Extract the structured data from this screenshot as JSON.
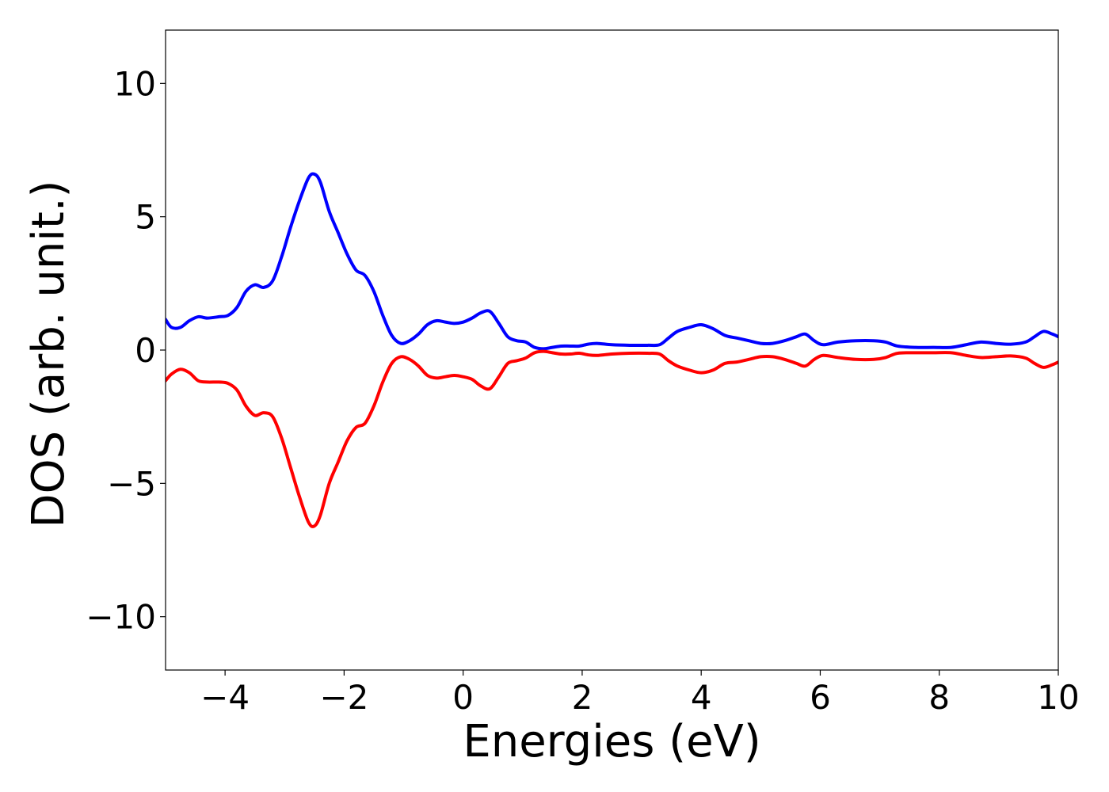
{
  "chart_data": {
    "type": "line",
    "title": "",
    "xlabel": "Energies (eV)",
    "ylabel": "DOS (arb. unit.)",
    "xlim": [
      -5,
      10
    ],
    "ylim": [
      -12,
      12
    ],
    "xticks": [
      -4,
      -2,
      0,
      2,
      4,
      6,
      8,
      10
    ],
    "xtick_labels": [
      "−4",
      "−2",
      "0",
      "2",
      "4",
      "6",
      "8",
      "10"
    ],
    "yticks": [
      -10,
      -5,
      0,
      5,
      10
    ],
    "ytick_labels": [
      "−10",
      "−5",
      "0",
      "5",
      "10"
    ],
    "grid": false,
    "legend": "none",
    "series": [
      {
        "color": "#0000ff",
        "points": [
          [
            -5.0,
            1.15
          ],
          [
            -4.9,
            0.85
          ],
          [
            -4.75,
            0.85
          ],
          [
            -4.6,
            1.1
          ],
          [
            -4.45,
            1.25
          ],
          [
            -4.3,
            1.2
          ],
          [
            -4.1,
            1.25
          ],
          [
            -3.95,
            1.3
          ],
          [
            -3.8,
            1.6
          ],
          [
            -3.65,
            2.2
          ],
          [
            -3.5,
            2.45
          ],
          [
            -3.35,
            2.35
          ],
          [
            -3.2,
            2.6
          ],
          [
            -3.05,
            3.5
          ],
          [
            -2.9,
            4.6
          ],
          [
            -2.75,
            5.6
          ],
          [
            -2.6,
            6.45
          ],
          [
            -2.5,
            6.6
          ],
          [
            -2.4,
            6.3
          ],
          [
            -2.25,
            5.2
          ],
          [
            -2.1,
            4.4
          ],
          [
            -1.95,
            3.6
          ],
          [
            -1.8,
            3.0
          ],
          [
            -1.65,
            2.8
          ],
          [
            -1.5,
            2.2
          ],
          [
            -1.35,
            1.3
          ],
          [
            -1.2,
            0.55
          ],
          [
            -1.05,
            0.25
          ],
          [
            -0.9,
            0.35
          ],
          [
            -0.75,
            0.6
          ],
          [
            -0.6,
            0.95
          ],
          [
            -0.45,
            1.1
          ],
          [
            -0.3,
            1.05
          ],
          [
            -0.15,
            1.0
          ],
          [
            0.0,
            1.05
          ],
          [
            0.15,
            1.2
          ],
          [
            0.3,
            1.4
          ],
          [
            0.45,
            1.45
          ],
          [
            0.6,
            1.0
          ],
          [
            0.75,
            0.5
          ],
          [
            0.9,
            0.35
          ],
          [
            1.05,
            0.3
          ],
          [
            1.2,
            0.1
          ],
          [
            1.35,
            0.05
          ],
          [
            1.5,
            0.1
          ],
          [
            1.65,
            0.15
          ],
          [
            1.8,
            0.15
          ],
          [
            1.95,
            0.15
          ],
          [
            2.1,
            0.22
          ],
          [
            2.25,
            0.25
          ],
          [
            2.5,
            0.2
          ],
          [
            2.8,
            0.18
          ],
          [
            3.1,
            0.18
          ],
          [
            3.3,
            0.2
          ],
          [
            3.45,
            0.45
          ],
          [
            3.6,
            0.7
          ],
          [
            3.8,
            0.85
          ],
          [
            4.0,
            0.95
          ],
          [
            4.2,
            0.8
          ],
          [
            4.4,
            0.55
          ],
          [
            4.6,
            0.45
          ],
          [
            4.8,
            0.35
          ],
          [
            5.0,
            0.25
          ],
          [
            5.2,
            0.25
          ],
          [
            5.4,
            0.35
          ],
          [
            5.6,
            0.5
          ],
          [
            5.75,
            0.6
          ],
          [
            5.9,
            0.35
          ],
          [
            6.05,
            0.2
          ],
          [
            6.3,
            0.3
          ],
          [
            6.6,
            0.35
          ],
          [
            6.9,
            0.35
          ],
          [
            7.1,
            0.3
          ],
          [
            7.3,
            0.15
          ],
          [
            7.6,
            0.1
          ],
          [
            7.9,
            0.1
          ],
          [
            8.2,
            0.1
          ],
          [
            8.45,
            0.2
          ],
          [
            8.7,
            0.3
          ],
          [
            8.95,
            0.25
          ],
          [
            9.2,
            0.22
          ],
          [
            9.45,
            0.3
          ],
          [
            9.6,
            0.5
          ],
          [
            9.75,
            0.7
          ],
          [
            9.9,
            0.6
          ],
          [
            10.0,
            0.5
          ]
        ]
      },
      {
        "color": "#ff0000",
        "points": [
          [
            -5.0,
            -1.15
          ],
          [
            -4.9,
            -0.9
          ],
          [
            -4.75,
            -0.72
          ],
          [
            -4.6,
            -0.85
          ],
          [
            -4.45,
            -1.15
          ],
          [
            -4.3,
            -1.2
          ],
          [
            -4.1,
            -1.2
          ],
          [
            -3.95,
            -1.25
          ],
          [
            -3.8,
            -1.5
          ],
          [
            -3.65,
            -2.1
          ],
          [
            -3.5,
            -2.45
          ],
          [
            -3.35,
            -2.35
          ],
          [
            -3.2,
            -2.5
          ],
          [
            -3.05,
            -3.3
          ],
          [
            -2.9,
            -4.4
          ],
          [
            -2.75,
            -5.5
          ],
          [
            -2.6,
            -6.45
          ],
          [
            -2.5,
            -6.6
          ],
          [
            -2.4,
            -6.2
          ],
          [
            -2.25,
            -5.0
          ],
          [
            -2.1,
            -4.2
          ],
          [
            -1.95,
            -3.4
          ],
          [
            -1.8,
            -2.9
          ],
          [
            -1.65,
            -2.75
          ],
          [
            -1.5,
            -2.1
          ],
          [
            -1.35,
            -1.2
          ],
          [
            -1.2,
            -0.5
          ],
          [
            -1.05,
            -0.25
          ],
          [
            -0.9,
            -0.35
          ],
          [
            -0.75,
            -0.6
          ],
          [
            -0.6,
            -0.95
          ],
          [
            -0.45,
            -1.05
          ],
          [
            -0.3,
            -1.0
          ],
          [
            -0.15,
            -0.95
          ],
          [
            0.0,
            -1.0
          ],
          [
            0.15,
            -1.1
          ],
          [
            0.3,
            -1.35
          ],
          [
            0.45,
            -1.45
          ],
          [
            0.6,
            -1.0
          ],
          [
            0.75,
            -0.5
          ],
          [
            0.9,
            -0.4
          ],
          [
            1.05,
            -0.3
          ],
          [
            1.2,
            -0.1
          ],
          [
            1.35,
            -0.05
          ],
          [
            1.5,
            -0.1
          ],
          [
            1.65,
            -0.15
          ],
          [
            1.8,
            -0.15
          ],
          [
            1.95,
            -0.12
          ],
          [
            2.1,
            -0.18
          ],
          [
            2.25,
            -0.2
          ],
          [
            2.5,
            -0.15
          ],
          [
            2.8,
            -0.12
          ],
          [
            3.1,
            -0.12
          ],
          [
            3.3,
            -0.15
          ],
          [
            3.45,
            -0.4
          ],
          [
            3.6,
            -0.6
          ],
          [
            3.8,
            -0.75
          ],
          [
            4.0,
            -0.85
          ],
          [
            4.2,
            -0.75
          ],
          [
            4.4,
            -0.5
          ],
          [
            4.6,
            -0.45
          ],
          [
            4.8,
            -0.35
          ],
          [
            5.0,
            -0.25
          ],
          [
            5.2,
            -0.25
          ],
          [
            5.4,
            -0.35
          ],
          [
            5.6,
            -0.5
          ],
          [
            5.75,
            -0.6
          ],
          [
            5.9,
            -0.35
          ],
          [
            6.05,
            -0.2
          ],
          [
            6.3,
            -0.28
          ],
          [
            6.6,
            -0.35
          ],
          [
            6.9,
            -0.35
          ],
          [
            7.1,
            -0.28
          ],
          [
            7.3,
            -0.12
          ],
          [
            7.6,
            -0.1
          ],
          [
            7.9,
            -0.1
          ],
          [
            8.2,
            -0.1
          ],
          [
            8.45,
            -0.2
          ],
          [
            8.7,
            -0.28
          ],
          [
            8.95,
            -0.25
          ],
          [
            9.2,
            -0.22
          ],
          [
            9.45,
            -0.3
          ],
          [
            9.6,
            -0.5
          ],
          [
            9.75,
            -0.65
          ],
          [
            9.9,
            -0.55
          ],
          [
            10.0,
            -0.45
          ]
        ]
      }
    ]
  }
}
